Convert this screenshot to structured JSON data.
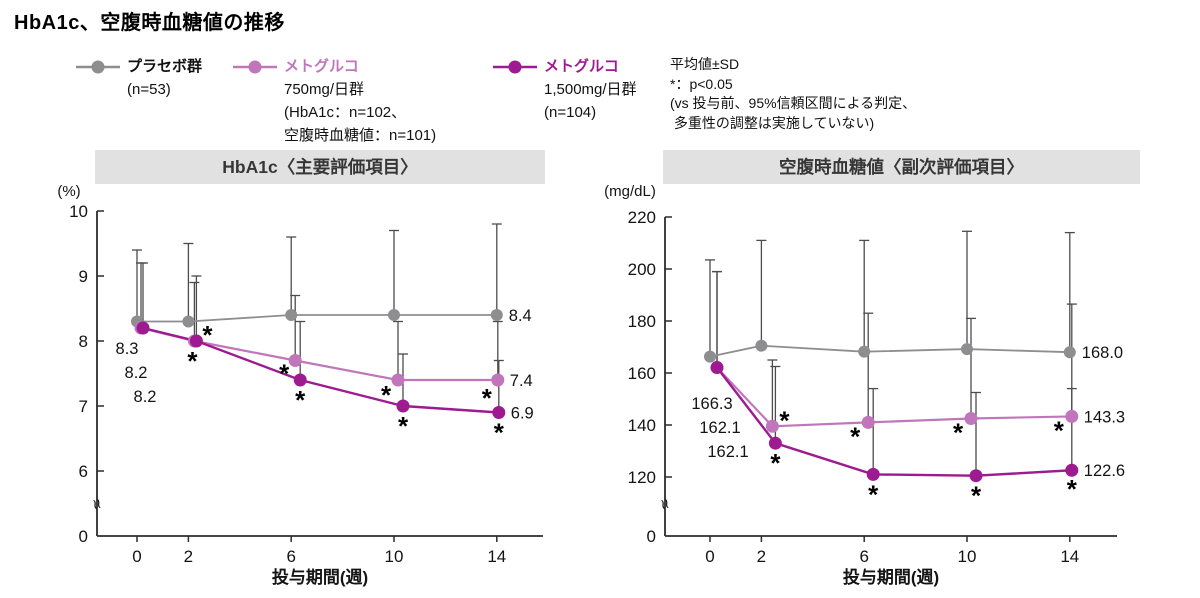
{
  "title": "HbA1c、空腹時血糖値の推移",
  "colors": {
    "placebo": "#8e8e91",
    "met750": "#c176bb",
    "met1500": "#9e1a90",
    "error": "#4d4b4c",
    "band": "#e1e1e1",
    "axis": "#2e2c2d",
    "text": "#141414"
  },
  "legend": [
    {
      "key": "placebo",
      "colored": false,
      "label": "プラセボ群",
      "lines": [
        "(n=53)"
      ]
    },
    {
      "key": "met750",
      "colored": true,
      "label": "メトグルコ",
      "lines": [
        "750mg/日群",
        "(HbA1c：n=102、",
        "空腹時血糖値：n=101)"
      ]
    },
    {
      "key": "met1500",
      "colored": true,
      "label": "メトグルコ",
      "lines": [
        "1,500mg/日群",
        "(n=104)"
      ]
    }
  ],
  "note": {
    "lines": [
      "平均値±SD",
      "*：p<0.05",
      "(vs 投与前、95%信頼区間による判定、",
      " 多重性の調整は実施していない)"
    ]
  },
  "chart_data": [
    {
      "type": "line",
      "title": "HbA1c〈主要評価項目〉",
      "unit": "(%)",
      "xlabel": "投与期間(週)",
      "x": [
        0,
        2,
        6,
        10,
        14
      ],
      "yticks": [
        10,
        9,
        8,
        7,
        6
      ],
      "ybase_label": "0",
      "axis_break": true,
      "start_labels": [
        "8.3",
        "8.2",
        "8.2"
      ],
      "series": [
        {
          "key": "placebo",
          "name": "プラセボ群(n=53)",
          "values": [
            8.3,
            8.3,
            8.4,
            8.4,
            8.4
          ],
          "sd_top": [
            9.4,
            9.5,
            9.6,
            9.7,
            9.8
          ],
          "sig": [
            false,
            false,
            false,
            false,
            false
          ],
          "end_label": "8.4"
        },
        {
          "key": "met750",
          "name": "メトグルコ750mg/日群(n=102)",
          "values": [
            8.2,
            8.0,
            7.7,
            7.4,
            7.4
          ],
          "sd_top": [
            9.2,
            8.9,
            8.7,
            8.3,
            8.3
          ],
          "sig": [
            false,
            true,
            true,
            true,
            true
          ],
          "end_label": "7.4"
        },
        {
          "key": "met1500",
          "name": "メトグルコ1,500mg/日群(n=104)",
          "values": [
            8.2,
            8.0,
            7.4,
            7.0,
            6.9
          ],
          "sd_top": [
            9.2,
            9.0,
            8.3,
            7.8,
            7.7
          ],
          "sig": [
            false,
            true,
            true,
            true,
            true
          ],
          "end_label": "6.9"
        }
      ]
    },
    {
      "type": "line",
      "title": "空腹時血糖値〈副次評価項目〉",
      "unit": "(mg/dL)",
      "xlabel": "投与期間(週)",
      "x": [
        0,
        2,
        6,
        10,
        14
      ],
      "yticks": [
        220,
        200,
        180,
        160,
        140,
        120
      ],
      "ybase_label": "0",
      "axis_break": true,
      "start_labels": [
        "166.3",
        "162.1",
        "162.1"
      ],
      "series": [
        {
          "key": "placebo",
          "name": "プラセボ群(n=53)",
          "values": [
            166.3,
            170.5,
            168.2,
            169.2,
            168.0
          ],
          "sd_top": [
            203.5,
            211,
            211,
            214.5,
            214
          ],
          "sig": [
            false,
            false,
            false,
            false,
            false
          ],
          "end_label": "168.0"
        },
        {
          "key": "met750",
          "name": "メトグルコ750mg/日群(n=101)",
          "values": [
            162.1,
            139.5,
            141.0,
            142.5,
            143.3
          ],
          "sd_top": [
            199,
            165,
            183,
            181,
            186.5
          ],
          "sig": [
            false,
            true,
            true,
            true,
            true
          ],
          "end_label": "143.3"
        },
        {
          "key": "met1500",
          "name": "メトグルコ1,500mg/日群(n=104)",
          "values": [
            162.1,
            133.0,
            121.0,
            120.5,
            122.6
          ],
          "sd_top": [
            199,
            162.5,
            154,
            152.5,
            154
          ],
          "sig": [
            false,
            true,
            true,
            true,
            true
          ],
          "end_label": "122.6"
        }
      ]
    }
  ]
}
